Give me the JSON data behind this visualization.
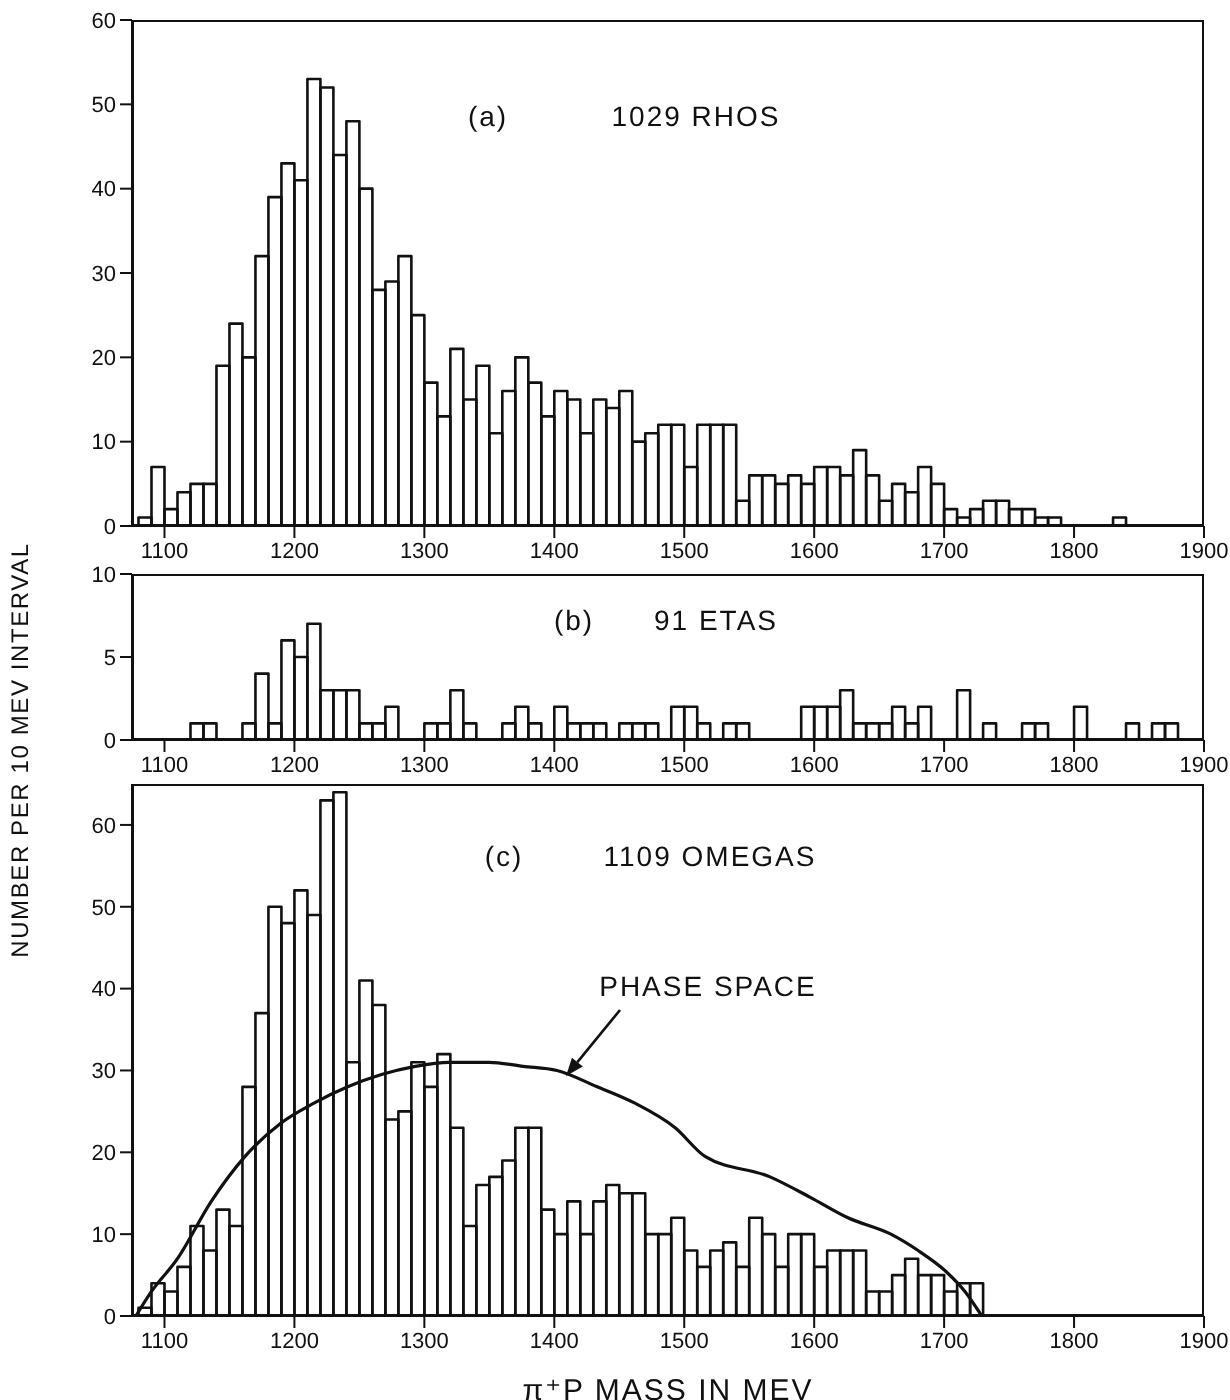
{
  "chart_data": [
    {
      "type": "histogram",
      "color": "#111111",
      "xlim": [
        1075,
        1900
      ],
      "xticks": [
        1100,
        1200,
        1300,
        1400,
        1500,
        1600,
        1700,
        1800,
        1900
      ],
      "ylim": [
        0,
        60
      ],
      "yticks": [
        0,
        10,
        20,
        30,
        40,
        50,
        60
      ],
      "annotations": [
        "(a)",
        "1029 RHOS"
      ],
      "bins": [
        1080,
        1090,
        1100,
        1110,
        1120,
        1130,
        1140,
        1150,
        1160,
        1170,
        1180,
        1190,
        1200,
        1210,
        1220,
        1230,
        1240,
        1250,
        1260,
        1270,
        1280,
        1290,
        1300,
        1310,
        1320,
        1330,
        1340,
        1350,
        1360,
        1370,
        1380,
        1390,
        1400,
        1410,
        1420,
        1430,
        1440,
        1450,
        1460,
        1470,
        1480,
        1490,
        1500,
        1510,
        1520,
        1530,
        1540,
        1550,
        1560,
        1570,
        1580,
        1590,
        1600,
        1610,
        1620,
        1630,
        1640,
        1650,
        1660,
        1670,
        1680,
        1690,
        1700,
        1710,
        1720,
        1730,
        1740,
        1750,
        1760,
        1770,
        1780,
        1790,
        1800,
        1810,
        1820,
        1830,
        1840
      ],
      "values": [
        1,
        7,
        2,
        4,
        5,
        5,
        19,
        24,
        20,
        32,
        39,
        43,
        41,
        53,
        52,
        44,
        48,
        40,
        28,
        29,
        32,
        25,
        17,
        13,
        21,
        15,
        19,
        11,
        16,
        20,
        17,
        13,
        16,
        15,
        11,
        15,
        14,
        16,
        10,
        11,
        12,
        12,
        7,
        12,
        12,
        12,
        3,
        6,
        6,
        5,
        6,
        5,
        7,
        7,
        6,
        9,
        6,
        3,
        5,
        4,
        7,
        5,
        2,
        1,
        2,
        3,
        3,
        2,
        2,
        1,
        1,
        0,
        0,
        0,
        0,
        1
      ]
    },
    {
      "type": "histogram",
      "color": "#111111",
      "xlim": [
        1075,
        1900
      ],
      "xticks": [
        1100,
        1200,
        1300,
        1400,
        1500,
        1600,
        1700,
        1800,
        1900
      ],
      "ylim": [
        0,
        10
      ],
      "yticks": [
        0,
        5,
        10
      ],
      "ylabel": "NUMBER PER 10 MEV INTERVAL",
      "annotations": [
        "(b)",
        "91 ETAS"
      ],
      "bins": [
        1120,
        1130,
        1140,
        1150,
        1160,
        1170,
        1180,
        1190,
        1200,
        1210,
        1220,
        1230,
        1240,
        1250,
        1260,
        1270,
        1280,
        1290,
        1300,
        1310,
        1320,
        1330,
        1340,
        1350,
        1360,
        1370,
        1380,
        1390,
        1400,
        1410,
        1420,
        1430,
        1440,
        1450,
        1460,
        1470,
        1480,
        1490,
        1500,
        1510,
        1520,
        1530,
        1540,
        1550,
        1560,
        1570,
        1580,
        1590,
        1600,
        1610,
        1620,
        1630,
        1640,
        1650,
        1660,
        1670,
        1680,
        1690,
        1700,
        1710,
        1720,
        1730,
        1740,
        1750,
        1760,
        1770,
        1780,
        1790,
        1800,
        1810,
        1820,
        1830,
        1840,
        1850,
        1860,
        1870,
        1880
      ],
      "values": [
        1,
        1,
        0,
        0,
        1,
        4,
        1,
        6,
        5,
        7,
        3,
        3,
        3,
        1,
        1,
        2,
        0,
        0,
        1,
        1,
        3,
        1,
        0,
        0,
        1,
        2,
        1,
        0,
        2,
        1,
        1,
        1,
        0,
        1,
        1,
        1,
        0,
        2,
        2,
        1,
        0,
        1,
        1,
        0,
        0,
        0,
        0,
        2,
        2,
        2,
        3,
        1,
        1,
        1,
        2,
        1,
        2,
        0,
        0,
        3,
        0,
        1,
        0,
        0,
        1,
        1,
        0,
        0,
        2,
        0,
        0,
        0,
        1,
        0,
        1,
        1
      ]
    },
    {
      "type": "histogram",
      "xlim": [
        1075,
        1900
      ],
      "xticks": [
        1100,
        1200,
        1300,
        1400,
        1500,
        1600,
        1700,
        1800,
        1900
      ],
      "ylim": [
        0,
        65
      ],
      "yticks": [
        0,
        10,
        20,
        30,
        40,
        50,
        60
      ],
      "xlabel": "π⁺P MASS IN MEV",
      "annotations": [
        "(c)",
        "1109 OMEGAS",
        "PHASE SPACE"
      ],
      "series": [
        {
          "type": "histogram",
          "color": "#111111",
          "bins": [
            1080,
            1090,
            1100,
            1110,
            1120,
            1130,
            1140,
            1150,
            1160,
            1170,
            1180,
            1190,
            1200,
            1210,
            1220,
            1230,
            1240,
            1250,
            1260,
            1270,
            1280,
            1290,
            1300,
            1310,
            1320,
            1330,
            1340,
            1350,
            1360,
            1370,
            1380,
            1390,
            1400,
            1410,
            1420,
            1430,
            1440,
            1450,
            1460,
            1470,
            1480,
            1490,
            1500,
            1510,
            1520,
            1530,
            1540,
            1550,
            1560,
            1570,
            1580,
            1590,
            1600,
            1610,
            1620,
            1630,
            1640,
            1650,
            1660,
            1670,
            1680,
            1690,
            1700,
            1710,
            1720,
            1730
          ],
          "values": [
            1,
            4,
            3,
            6,
            11,
            8,
            13,
            11,
            28,
            37,
            50,
            48,
            52,
            49,
            63,
            64,
            31,
            41,
            38,
            24,
            25,
            31,
            28,
            32,
            23,
            11,
            16,
            17,
            19,
            23,
            23,
            13,
            10,
            14,
            10,
            14,
            16,
            15,
            15,
            10,
            10,
            12,
            8,
            6,
            8,
            9,
            6,
            12,
            10,
            6,
            10,
            10,
            6,
            8,
            8,
            8,
            3,
            3,
            5,
            7,
            5,
            5,
            3,
            4,
            4
          ]
        },
        {
          "type": "line",
          "color": "#111111",
          "x": [
            1078,
            1090,
            1110,
            1136,
            1162,
            1189,
            1215,
            1241,
            1267,
            1293,
            1319,
            1350,
            1376,
            1402,
            1433,
            1462,
            1493,
            1516,
            1566,
            1597,
            1626,
            1659,
            1680,
            1701,
            1716,
            1729
          ],
          "values": [
            0,
            3,
            7,
            14,
            19.5,
            23.5,
            26,
            28,
            29.5,
            30.5,
            31,
            31,
            30.5,
            30,
            28,
            26,
            23,
            19.5,
            17,
            14.5,
            12,
            10,
            8,
            5.5,
            3,
            0
          ]
        }
      ]
    }
  ]
}
